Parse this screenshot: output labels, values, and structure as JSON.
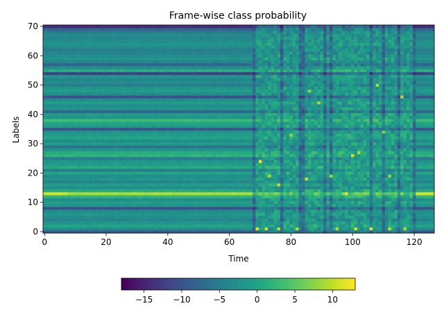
{
  "chart_data": {
    "type": "heatmap",
    "title": "Frame-wise class probability",
    "xlabel": "Time",
    "ylabel": "Labels",
    "xlim": [
      -0.5,
      126.5
    ],
    "ylim": [
      -0.5,
      70.5
    ],
    "x_ticks": [
      0,
      20,
      40,
      60,
      80,
      100,
      120
    ],
    "y_ticks": [
      0,
      10,
      20,
      30,
      40,
      50,
      60,
      70
    ],
    "n_time": 127,
    "n_labels": 71,
    "colorbar": {
      "colormap": "viridis",
      "range": [
        -18,
        13
      ],
      "ticks": [
        -15,
        -10,
        -5,
        0,
        5,
        10
      ],
      "tick_labels": [
        "−15",
        "−10",
        "−5",
        "0",
        "5",
        "10"
      ],
      "orientation": "horizontal"
    },
    "row_base_values": {
      "0": -9,
      "1": -3,
      "2": 0,
      "3": -2,
      "4": -4,
      "5": -3,
      "6": -2,
      "7": -3,
      "8": -10,
      "9": -2,
      "10": -1,
      "11": -3,
      "12": 2,
      "13": 9,
      "14": 1,
      "15": -3,
      "16": -1,
      "17": -4,
      "18": -2,
      "19": -3,
      "20": 0,
      "21": -5,
      "22": 1,
      "23": -1,
      "24": -2,
      "25": -5,
      "26": 2,
      "27": 1,
      "28": -2,
      "29": -6,
      "30": -1,
      "31": -3,
      "32": 0,
      "33": -1,
      "34": -2,
      "35": -10,
      "36": -1,
      "37": 0,
      "38": 3,
      "39": -2,
      "40": -1,
      "41": -8,
      "42": -2,
      "43": -3,
      "44": -1,
      "45": -3,
      "46": -10,
      "47": -3,
      "48": -1,
      "49": -2,
      "50": -5,
      "51": -3,
      "52": -4,
      "53": -2,
      "54": -12,
      "55": 1,
      "56": -3,
      "57": -8,
      "58": -4,
      "59": -2,
      "60": -3,
      "61": -4,
      "62": -5,
      "63": -3,
      "64": -2,
      "65": -3,
      "66": -4,
      "67": -3,
      "68": -5,
      "69": -8,
      "70": -14
    },
    "highlights": [
      {
        "t": 70,
        "label": 24,
        "value": 12
      },
      {
        "t": 73,
        "label": 19,
        "value": 9
      },
      {
        "t": 76,
        "label": 16,
        "value": 10
      },
      {
        "t": 80,
        "label": 33,
        "value": 8
      },
      {
        "t": 85,
        "label": 18,
        "value": 11
      },
      {
        "t": 86,
        "label": 48,
        "value": 8
      },
      {
        "t": 89,
        "label": 44,
        "value": 9
      },
      {
        "t": 93,
        "label": 19,
        "value": 8
      },
      {
        "t": 98,
        "label": 13,
        "value": 12
      },
      {
        "t": 100,
        "label": 26,
        "value": 11
      },
      {
        "t": 102,
        "label": 27,
        "value": 9
      },
      {
        "t": 108,
        "label": 50,
        "value": 9
      },
      {
        "t": 110,
        "label": 34,
        "value": 7
      },
      {
        "t": 112,
        "label": 19,
        "value": 8
      },
      {
        "t": 116,
        "label": 46,
        "value": 9
      },
      {
        "t": 69,
        "label": 1,
        "value": 12
      },
      {
        "t": 72,
        "label": 1,
        "value": 11
      },
      {
        "t": 76,
        "label": 1,
        "value": 10
      },
      {
        "t": 82,
        "label": 1,
        "value": 9
      },
      {
        "t": 95,
        "label": 1,
        "value": 9
      },
      {
        "t": 101,
        "label": 1,
        "value": 11
      },
      {
        "t": 106,
        "label": 1,
        "value": 12
      },
      {
        "t": 112,
        "label": 1,
        "value": 10
      },
      {
        "t": 117,
        "label": 1,
        "value": 9
      }
    ]
  }
}
